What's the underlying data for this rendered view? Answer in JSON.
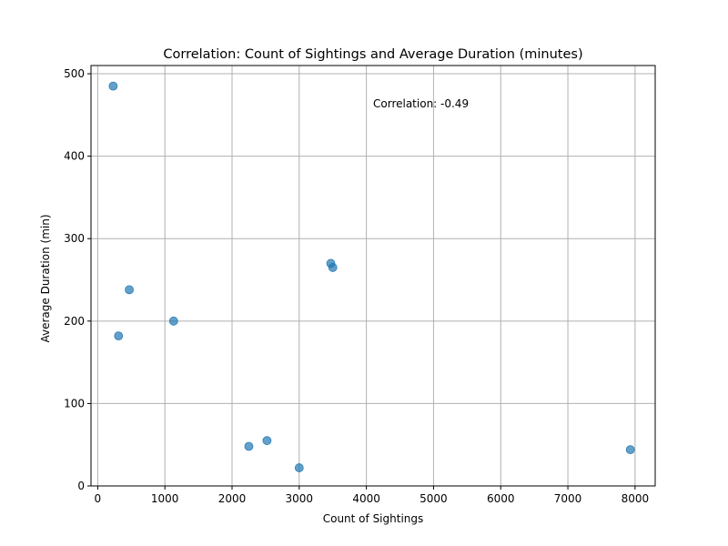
{
  "chart_data": {
    "type": "scatter",
    "title": "Correlation: Count of Sightings and Average Duration (minutes)",
    "xlabel": "Count of Sightings",
    "ylabel": "Average Duration (min)",
    "xlim": [
      -100,
      8300
    ],
    "ylim": [
      0,
      510
    ],
    "xticks": [
      0,
      1000,
      2000,
      3000,
      4000,
      5000,
      6000,
      7000,
      8000
    ],
    "yticks": [
      0,
      100,
      200,
      300,
      400,
      500
    ],
    "grid": true,
    "point_color": "#1f77b4",
    "point_alpha": 0.7,
    "points": [
      {
        "x": 230,
        "y": 485
      },
      {
        "x": 470,
        "y": 238
      },
      {
        "x": 310,
        "y": 182
      },
      {
        "x": 1130,
        "y": 200
      },
      {
        "x": 3470,
        "y": 270
      },
      {
        "x": 3500,
        "y": 265
      },
      {
        "x": 2250,
        "y": 48
      },
      {
        "x": 2520,
        "y": 55
      },
      {
        "x": 3000,
        "y": 22
      },
      {
        "x": 7930,
        "y": 44
      }
    ],
    "annotation": "Correlation: -0.49"
  }
}
